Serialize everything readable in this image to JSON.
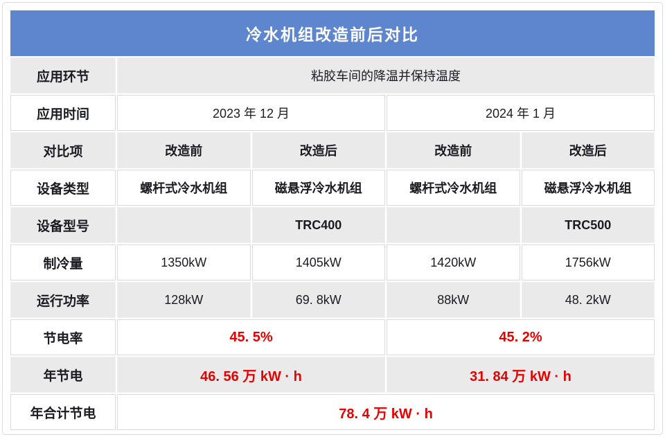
{
  "title": "冷水机组改造前后对比",
  "colors": {
    "title_bar_bg": "#5E86CE",
    "title_text": "#FFFFFF",
    "row_shaded_bg": "#EAEAEA",
    "row_plain_bg": "#FFFFFF",
    "cell_border": "#D9D9D9",
    "body_text": "#1B1B22",
    "highlight_red": "#E60000"
  },
  "table": {
    "rows": [
      {
        "label": "应用环节",
        "shade": "gray",
        "cells": [
          {
            "text": "粘胶车间的降温并保持温度",
            "span": 4
          }
        ]
      },
      {
        "label": "应用时间",
        "shade": "white",
        "cells": [
          {
            "text": "2023 年 12 月",
            "span": 2
          },
          {
            "text": "2024 年 1 月",
            "span": 2
          }
        ]
      },
      {
        "label": "对比项",
        "shade": "gray",
        "bold": true,
        "cells": [
          {
            "text": "改造前"
          },
          {
            "text": "改造后"
          },
          {
            "text": "改造前"
          },
          {
            "text": "改造后"
          }
        ]
      },
      {
        "label": "设备类型",
        "shade": "white",
        "bold": true,
        "cells": [
          {
            "text": "螺杆式冷水机组"
          },
          {
            "text": "磁悬浮冷水机组"
          },
          {
            "text": "螺杆式冷水机组"
          },
          {
            "text": "磁悬浮冷水机组"
          }
        ]
      },
      {
        "label": "设备型号",
        "shade": "gray",
        "bold": true,
        "cells": [
          {
            "text": ""
          },
          {
            "text": "TRC400"
          },
          {
            "text": ""
          },
          {
            "text": "TRC500"
          }
        ]
      },
      {
        "label": "制冷量",
        "shade": "white",
        "cells": [
          {
            "text": "1350kW"
          },
          {
            "text": "1405kW"
          },
          {
            "text": "1420kW"
          },
          {
            "text": "1756kW"
          }
        ]
      },
      {
        "label": "运行功率",
        "shade": "gray",
        "cells": [
          {
            "text": "128kW"
          },
          {
            "text": "69. 8kW"
          },
          {
            "text": "88kW"
          },
          {
            "text": "48. 2kW"
          }
        ]
      },
      {
        "label": "节电率",
        "shade": "white",
        "cells": [
          {
            "text": "45. 5%",
            "span": 2,
            "red": true
          },
          {
            "text": "45. 2%",
            "span": 2,
            "red": true
          }
        ]
      },
      {
        "label": "年节电",
        "shade": "gray",
        "cells": [
          {
            "text": "46. 56 万 kW · h",
            "span": 2,
            "red": true
          },
          {
            "text": "31. 84 万 kW · h",
            "span": 2,
            "red": true
          }
        ]
      },
      {
        "label": "年合计节电",
        "shade": "white",
        "cells": [
          {
            "text": "78. 4 万 kW · h",
            "span": 4,
            "red": true
          }
        ]
      }
    ]
  }
}
